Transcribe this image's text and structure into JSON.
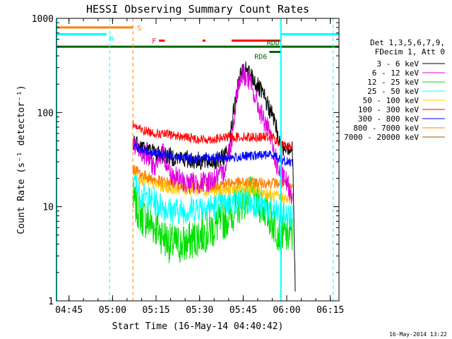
{
  "chart_data": {
    "type": "line",
    "title": "HESSI Observing Summary Count Rates",
    "xlabel": "Start Time (16-May-14 04:40:42)",
    "ylabel": "Count Rate (s⁻¹ detector⁻¹)",
    "y_scale": "log",
    "ylim": [
      1,
      1000
    ],
    "xlim": [
      "04:40:42",
      "06:18:00"
    ],
    "x_ticks": [
      "04:45",
      "05:00",
      "05:15",
      "05:30",
      "05:45",
      "06:00",
      "06:15"
    ],
    "y_ticks": [
      "1",
      "10",
      "100",
      "1000"
    ],
    "grid": false,
    "legend": {
      "position": "right",
      "header": [
        "Det 1,3,5,6,7,9,",
        "FDecim 1, Att 0"
      ]
    },
    "series": [
      {
        "name": "3 - 6 keV",
        "color": "#000000",
        "x": [
          "05:07",
          "05:12",
          "05:18",
          "05:25",
          "05:32",
          "05:37",
          "05:40",
          "05:42",
          "05:44",
          "05:46",
          "05:48",
          "05:52",
          "05:56",
          "05:58",
          "06:00",
          "06:02",
          "06:03"
        ],
        "y": [
          50,
          40,
          35,
          32,
          30,
          31,
          40,
          120,
          250,
          280,
          240,
          150,
          80,
          40,
          45,
          40,
          1
        ]
      },
      {
        "name": "6 - 12 keV",
        "color": "#e000e0",
        "x": [
          "05:07",
          "05:12",
          "05:15",
          "05:17",
          "05:20",
          "05:25",
          "05:32",
          "05:38",
          "05:41",
          "05:43",
          "05:45",
          "05:47",
          "05:50",
          "05:54",
          "05:57",
          "06:00",
          "06:02"
        ],
        "y": [
          45,
          35,
          25,
          40,
          22,
          18,
          18,
          22,
          50,
          180,
          260,
          220,
          120,
          60,
          25,
          18,
          13
        ]
      },
      {
        "name": "12 - 25 keV",
        "color": "#00e000",
        "x": [
          "05:07",
          "05:10",
          "05:15",
          "05:20",
          "05:25",
          "05:30",
          "05:35",
          "05:40",
          "05:45",
          "05:48",
          "05:52",
          "05:55",
          "05:58",
          "06:00",
          "06:02"
        ],
        "y": [
          12,
          8,
          6,
          4,
          4,
          5,
          6,
          8,
          12,
          13,
          10,
          7,
          5,
          5,
          5
        ]
      },
      {
        "name": "25 - 50 keV",
        "color": "#00ffff",
        "x": [
          "05:07",
          "05:10",
          "05:15",
          "05:20",
          "05:25",
          "05:30",
          "05:35",
          "05:40",
          "05:45",
          "05:48",
          "05:52",
          "05:55",
          "05:58",
          "06:00",
          "06:02"
        ],
        "y": [
          20,
          13,
          11,
          9,
          9,
          10,
          10,
          11,
          12,
          11,
          10,
          9,
          8,
          8,
          8
        ]
      },
      {
        "name": "50 - 100 keV",
        "color": "#ffc800",
        "x": [
          "05:07",
          "05:10",
          "05:15",
          "05:20",
          "05:30",
          "05:40",
          "05:45",
          "05:50",
          "05:55",
          "06:00",
          "06:02"
        ],
        "y": [
          25,
          20,
          17,
          16,
          15,
          15,
          16,
          15,
          13,
          12,
          12
        ]
      },
      {
        "name": "100 - 300 keV",
        "color": "#ff0000",
        "x": [
          "05:07",
          "05:10",
          "05:15",
          "05:20",
          "05:25",
          "05:30",
          "05:35",
          "05:40",
          "05:45",
          "05:50",
          "05:55",
          "05:58",
          "06:00",
          "06:02"
        ],
        "y": [
          75,
          65,
          60,
          58,
          55,
          52,
          52,
          55,
          55,
          55,
          55,
          45,
          45,
          42
        ]
      },
      {
        "name": "300 - 800 keV",
        "color": "#0000ff",
        "x": [
          "05:07",
          "05:10",
          "05:15",
          "05:20",
          "05:25",
          "05:30",
          "05:35",
          "05:40",
          "05:45",
          "05:50",
          "05:55",
          "05:58",
          "06:00",
          "06:02"
        ],
        "y": [
          45,
          40,
          37,
          35,
          33,
          32,
          33,
          33,
          34,
          35,
          36,
          32,
          30,
          30
        ]
      },
      {
        "name": "800 - 7000 keV",
        "color": "#ff8000",
        "x": [
          "05:07",
          "05:10",
          "05:15",
          "05:20",
          "05:25",
          "05:30",
          "05:35",
          "05:40",
          "05:45",
          "05:50",
          "05:55",
          "06:00",
          "06:02"
        ],
        "y": [
          26,
          22,
          19,
          18,
          17,
          17,
          17,
          18,
          18,
          18,
          18,
          17,
          16
        ]
      },
      {
        "name": "7000 - 20000 keV",
        "color": "#906000",
        "x": [],
        "y": []
      }
    ],
    "flags": [
      {
        "label": "S",
        "color": "#ff8000",
        "segments": [
          [
            "04:40:42",
            "05:07"
          ]
        ],
        "y": 800
      },
      {
        "label": "N",
        "color": "#00ffff",
        "segments": [
          [
            "04:40:42",
            "04:58"
          ],
          [
            "05:58",
            "06:18"
          ]
        ],
        "y": 680
      },
      {
        "label": "F",
        "color": "#ff0000",
        "segments": [
          [
            "05:16",
            "05:18"
          ],
          [
            "05:31",
            "05:32"
          ],
          [
            "05:41",
            "05:58"
          ]
        ],
        "y": 580
      },
      {
        "label": "RDD",
        "color": "#006600",
        "segments": [
          [
            "04:40:42",
            "06:18"
          ]
        ],
        "y": 500
      },
      {
        "label": "RD6",
        "color": "#006600",
        "segments": [
          [
            "05:54",
            "05:58"
          ]
        ],
        "y": 440
      }
    ],
    "vlines": [
      {
        "x": "04:40:42",
        "color": "#00ffff",
        "style": "solid"
      },
      {
        "x": "04:59",
        "color": "#00ffff",
        "style": "dashed"
      },
      {
        "x": "05:07",
        "color": "#ff8000",
        "style": "dashed"
      },
      {
        "x": "05:58",
        "color": "#00ffff",
        "style": "solid"
      },
      {
        "x": "06:16",
        "color": "#00ffff",
        "style": "dashed"
      }
    ],
    "footer_date": "16-May-2014 13:22"
  }
}
